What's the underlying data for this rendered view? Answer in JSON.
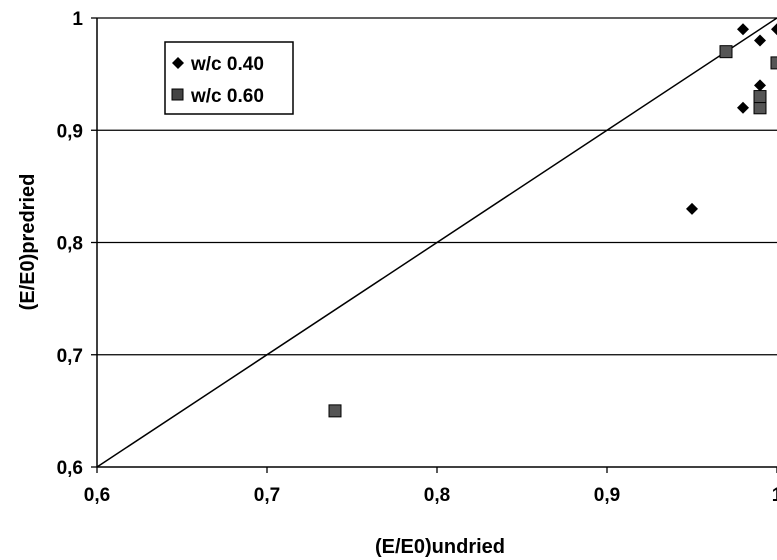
{
  "chart_data": {
    "type": "scatter",
    "xlabel": "(E/E0)undried",
    "ylabel": "(E/E0)predried",
    "xlim": [
      0.6,
      1.0
    ],
    "ylim": [
      0.6,
      1.0
    ],
    "x_ticks": [
      "0,6",
      "0,7",
      "0,8",
      "0,9",
      "1"
    ],
    "y_ticks": [
      "0,6",
      "0,7",
      "0,8",
      "0,9",
      "1"
    ],
    "grid": "horizontal",
    "legend_position": "top-left",
    "reference_line": {
      "from": [
        0.6,
        0.6
      ],
      "to": [
        1.0,
        1.0
      ]
    },
    "series": [
      {
        "name": "w/c 0.40",
        "marker": "diamond",
        "color": "#000000",
        "points": [
          [
            0.95,
            0.83
          ],
          [
            0.98,
            0.99
          ],
          [
            0.99,
            0.98
          ],
          [
            1.0,
            0.99
          ],
          [
            0.98,
            0.92
          ],
          [
            0.99,
            0.94
          ],
          [
            0.99,
            0.93
          ]
        ]
      },
      {
        "name": "w/c 0.60",
        "marker": "square",
        "color": "#555555",
        "points": [
          [
            0.74,
            0.65
          ],
          [
            0.97,
            0.97
          ],
          [
            0.99,
            0.92
          ],
          [
            0.99,
            0.93
          ],
          [
            1.0,
            0.96
          ]
        ]
      }
    ]
  }
}
